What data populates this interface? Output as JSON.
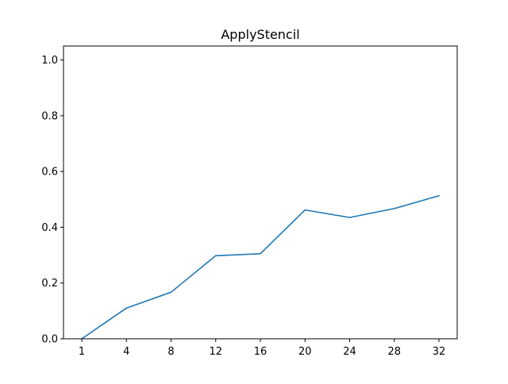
{
  "chart_data": {
    "type": "line",
    "title": "ApplyStencil",
    "xlabel": "",
    "ylabel": "",
    "categories": [
      "1",
      "4",
      "8",
      "12",
      "16",
      "20",
      "24",
      "28",
      "32"
    ],
    "series": [
      {
        "values": [
          0.0,
          0.11,
          0.167,
          0.298,
          0.305,
          0.462,
          0.435,
          0.467,
          0.513
        ],
        "color": "#1f77b4"
      }
    ],
    "ylim": [
      0,
      1.05
    ],
    "yticks": [
      0.0,
      0.2,
      0.4,
      0.6,
      0.8,
      1.0
    ],
    "ytick_labels": [
      "0.0",
      "0.2",
      "0.4",
      "0.6",
      "0.8",
      "1.0"
    ],
    "grid": false,
    "legend": false
  }
}
